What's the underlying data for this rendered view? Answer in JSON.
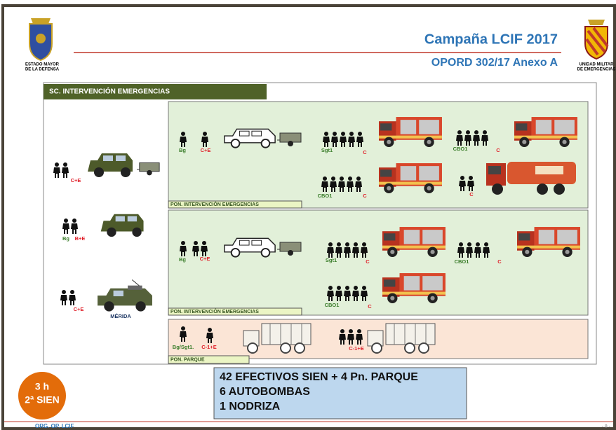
{
  "header": {
    "left_logo_caption": [
      "ESTADO MAYOR",
      "DE LA DEFENSA"
    ],
    "title": "Campaña LCIF 2017",
    "subtitle": "OPORD 302/17 Anexo A",
    "right_logo_caption": [
      "UNIDAD MILITAR",
      "DE EMERGENCIAS"
    ]
  },
  "panel": {
    "title": "SC. INTERVENCIÓN EMERGENCIAS",
    "command": {
      "labels": [
        "C+E",
        "Bg",
        "B+E",
        "C+E",
        "MÉRIDA"
      ]
    },
    "sections": [
      {
        "title": "PON. INTERVENCIÓN EMERGENCIAS",
        "labels": [
          "Bg",
          "C+E",
          "Sgt1",
          "C",
          "CBO1",
          "C",
          "CBO1",
          "C",
          "C"
        ]
      },
      {
        "title": "PON. INTERVENCIÓN EMERGENCIAS",
        "labels": [
          "Bg",
          "C+E",
          "Sgt1",
          "C",
          "CBO1",
          "C",
          "CBO1",
          "C"
        ]
      },
      {
        "title": "PON. PARQUE",
        "labels": [
          "Bg/Sgt1.",
          "C-1+E",
          "C-1+E"
        ]
      }
    ]
  },
  "summary": {
    "lines": [
      "42 EFECTIVOS SIEN + 4 Pn. PARQUE",
      "6 AUTOBOMBAS",
      "1 NODRIZA"
    ]
  },
  "badge": {
    "lines": [
      "3 h",
      "2ª SIEN"
    ]
  },
  "footer": {
    "left": "ORG. OP. LCIF",
    "right": "- 8 -"
  }
}
